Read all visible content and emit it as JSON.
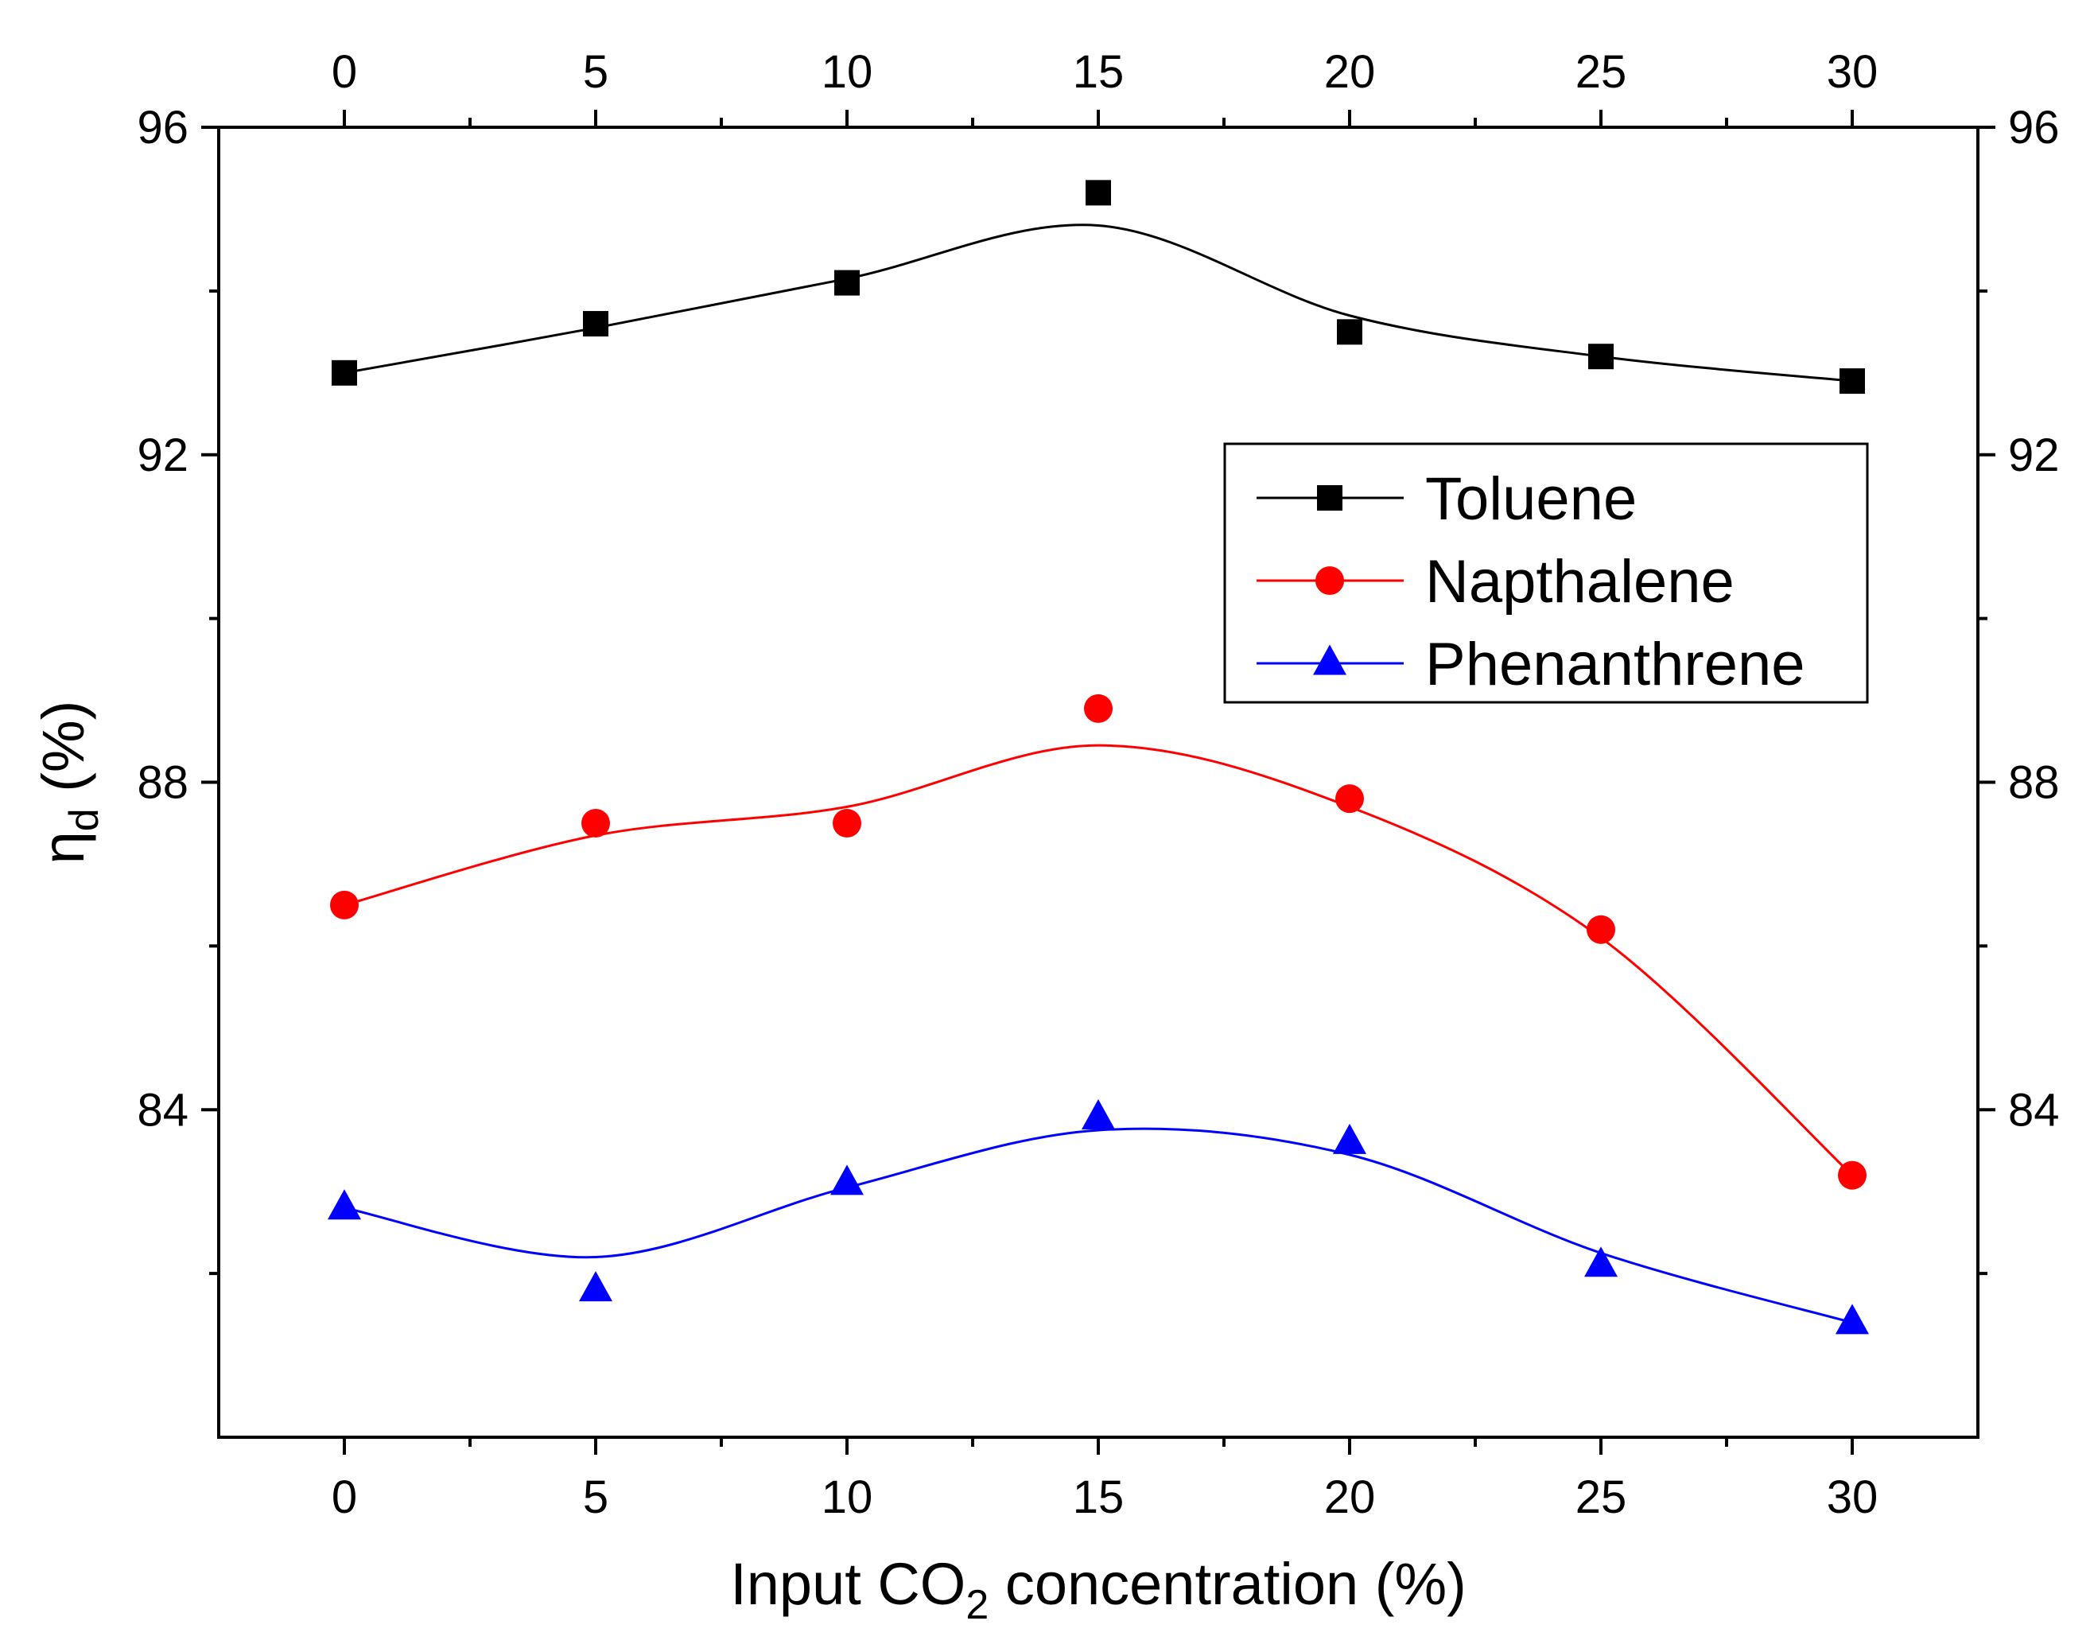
{
  "chart_data": {
    "type": "line",
    "title": "",
    "xlabel": {
      "prefix": "Input CO",
      "sub": "2",
      "suffix": " concentration (%)"
    },
    "ylabel": {
      "prefix": "η",
      "sub": "d",
      "suffix": " (%)"
    },
    "xlim": [
      -2.5,
      32.5
    ],
    "ylim": [
      80,
      96
    ],
    "x_ticks": [
      0,
      5,
      10,
      15,
      20,
      25,
      30
    ],
    "x_tick_labels": [
      "0",
      "5",
      "10",
      "15",
      "20",
      "25",
      "30"
    ],
    "x_minor_ticks": [
      2.5,
      7.5,
      12.5,
      17.5,
      22.5,
      27.5
    ],
    "y_ticks": [
      84,
      88,
      92,
      96
    ],
    "y_tick_labels": [
      "84",
      "88",
      "92",
      "96"
    ],
    "y_minor_ticks": [
      82,
      86,
      90,
      94
    ],
    "mirror_axes": true,
    "grid": false,
    "legend_position": "top-right",
    "x": [
      0,
      5,
      10,
      15,
      20,
      25,
      30
    ],
    "series": [
      {
        "name": "Toluene",
        "color": "#000000",
        "marker": "square",
        "values": [
          93.0,
          93.6,
          94.1,
          95.2,
          93.5,
          93.2,
          92.9
        ],
        "smooth": [
          93.0,
          93.55,
          94.15,
          94.8,
          93.7,
          93.2,
          92.9
        ]
      },
      {
        "name": "Napthalene",
        "color": "#ff0000",
        "marker": "circle",
        "values": [
          86.5,
          87.5,
          87.5,
          88.9,
          87.8,
          86.2,
          83.2
        ],
        "smooth": [
          86.5,
          87.35,
          87.7,
          88.45,
          87.7,
          86.1,
          83.2
        ]
      },
      {
        "name": "Phenanthrene",
        "color": "#0000ff",
        "marker": "triangle",
        "values": [
          82.8,
          81.8,
          83.1,
          83.9,
          83.6,
          82.1,
          81.4
        ],
        "smooth": [
          82.8,
          82.2,
          83.05,
          83.75,
          83.45,
          82.25,
          81.4
        ]
      }
    ]
  }
}
